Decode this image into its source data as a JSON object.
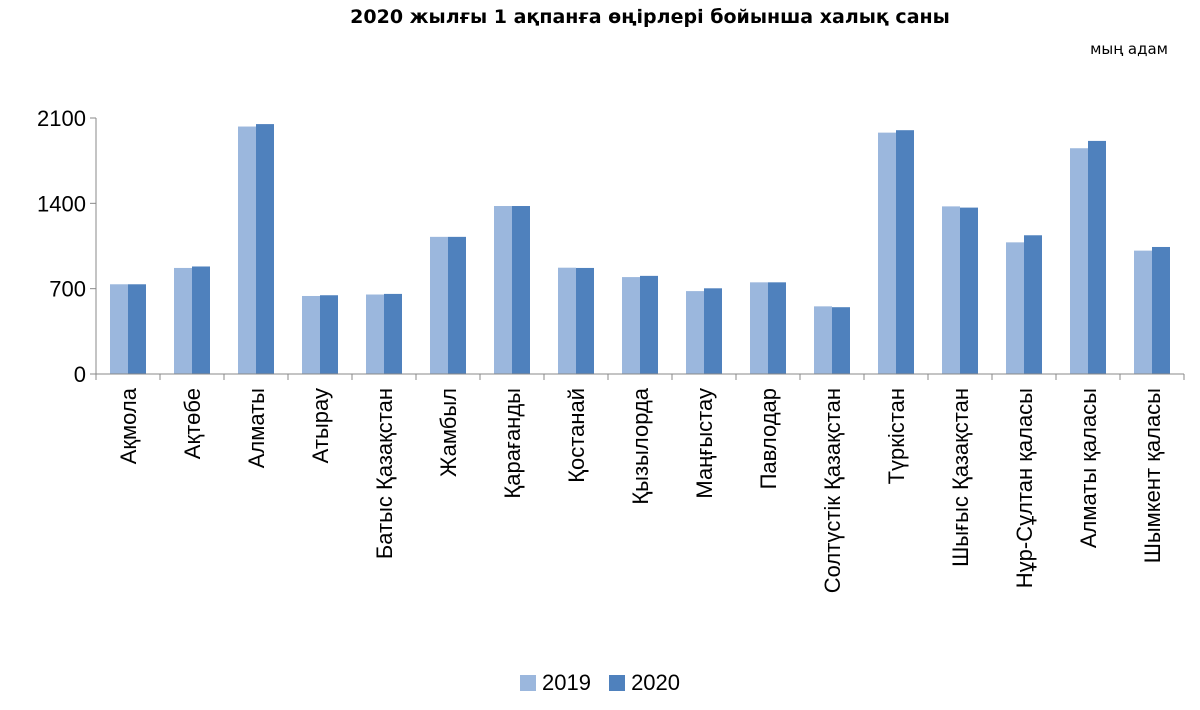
{
  "chart_data": {
    "type": "bar",
    "title": "2020 жылғы 1 ақпанға өңірлері бойынша халық саны",
    "unit": "мың адам",
    "ylim": [
      0,
      2100
    ],
    "yticks": [
      "0",
      "700",
      "1400",
      "2100"
    ],
    "categories": [
      "Ақмола",
      "Ақтөбе",
      "Алматы",
      "Атырау",
      "Батыс Қазақстан",
      "Жамбыл",
      "Қарағанды",
      "Қостанай",
      "Қызылорда",
      "Маңғыстау",
      "Павлодар",
      "Солтүстік Қазақстан",
      "Түркістан",
      "Шығыс Қазақстан",
      "Нұр-Сұлтан қаласы",
      "Алматы қаласы",
      "Шымкент қаласы"
    ],
    "series": [
      {
        "name": "2019",
        "color": "#9bb7dd",
        "values": [
          736,
          870,
          2030,
          640,
          652,
          1125,
          1378,
          872,
          795,
          680,
          752,
          555,
          1980,
          1375,
          1080,
          1852,
          1012
        ]
      },
      {
        "name": "2020",
        "color": "#4f81bd",
        "values": [
          736,
          882,
          2050,
          646,
          657,
          1125,
          1378,
          870,
          805,
          703,
          752,
          548,
          2000,
          1365,
          1138,
          1912,
          1042
        ]
      }
    ],
    "grid": false,
    "legend_position": "bottom"
  }
}
